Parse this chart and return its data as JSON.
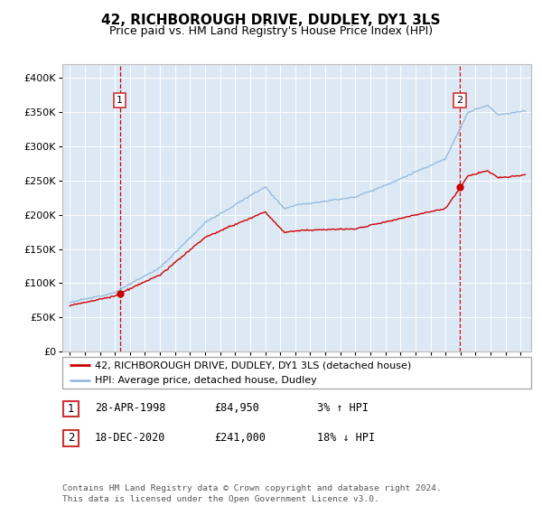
{
  "title": "42, RICHBOROUGH DRIVE, DUDLEY, DY1 3LS",
  "subtitle": "Price paid vs. HM Land Registry's House Price Index (HPI)",
  "ylabel_ticks": [
    "£0",
    "£50K",
    "£100K",
    "£150K",
    "£200K",
    "£250K",
    "£300K",
    "£350K",
    "£400K"
  ],
  "ytick_values": [
    0,
    50000,
    100000,
    150000,
    200000,
    250000,
    300000,
    350000,
    400000
  ],
  "ylim": [
    0,
    420000
  ],
  "xlim_start": 1994.5,
  "xlim_end": 2025.7,
  "bg_color": "#dce9f5",
  "line1_color": "#cc0000",
  "line2_color": "#99bbdd",
  "marker_color": "#cc0000",
  "sale1_x": 1998.32,
  "sale1_y": 84950,
  "sale2_x": 2020.96,
  "sale2_y": 241000,
  "vline_color": "#cc0000",
  "vline_style": "--",
  "annotation_color": "#cc3333",
  "legend_label1": "42, RICHBOROUGH DRIVE, DUDLEY, DY1 3LS (detached house)",
  "legend_label2": "HPI: Average price, detached house, Dudley",
  "table_row1": [
    "1",
    "28-APR-1998",
    "£84,950",
    "3% ↑ HPI"
  ],
  "table_row2": [
    "2",
    "18-DEC-2020",
    "£241,000",
    "18% ↓ HPI"
  ],
  "footer": "Contains HM Land Registry data © Crown copyright and database right 2024.\nThis data is licensed under the Open Government Licence v3.0.",
  "grid_color": "#ffffff",
  "title_fontsize": 11,
  "subtitle_fontsize": 9
}
